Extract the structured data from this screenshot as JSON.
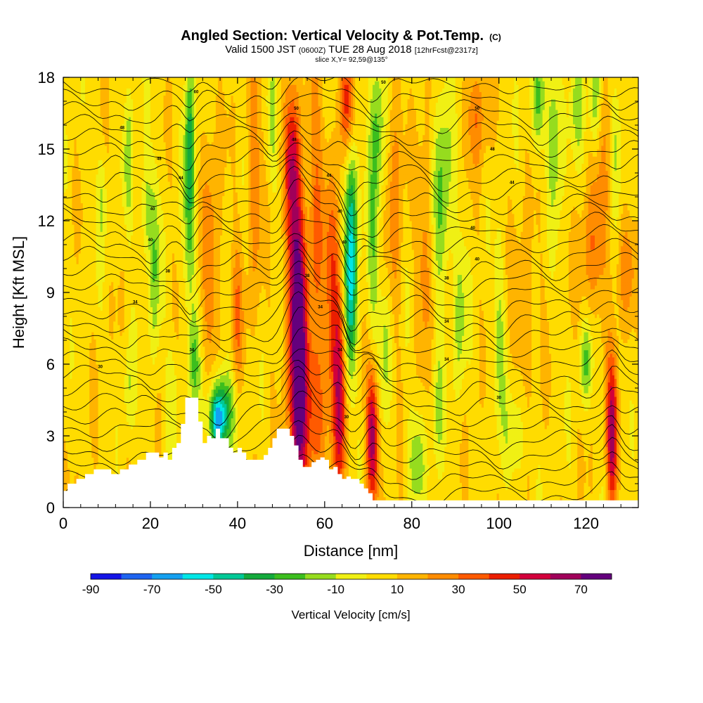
{
  "chart_data": {
    "type": "heatmap",
    "title": "Angled Section: Vertical Velocity & Pot.Temp.",
    "title_suffix": "(C)",
    "subtitle": {
      "valid": "Valid 1500 JST",
      "zulu": "(0600Z)",
      "date": "TUE 28 Aug 2018",
      "fcst": "[12hrFcst@2317z]"
    },
    "slice_label": "slice X,Y= 92,59@135°",
    "xlabel": "Distance [nm]",
    "ylabel": "Height [Kft MSL]",
    "xlim": [
      0,
      132
    ],
    "ylim": [
      0,
      18
    ],
    "x_ticks": [
      0,
      20,
      40,
      60,
      80,
      100,
      120
    ],
    "y_ticks": [
      0,
      3,
      6,
      9,
      12,
      15,
      18
    ],
    "grid": false,
    "colorbar": {
      "label": "Vertical Velocity [cm/s]",
      "bounds": [
        -90,
        -80,
        -70,
        -60,
        -50,
        -40,
        -30,
        -20,
        -10,
        0,
        10,
        20,
        30,
        40,
        50,
        60,
        70,
        80
      ],
      "tick_labels": [
        "-90",
        "-70",
        "-50",
        "-30",
        "-10",
        "10",
        "30",
        "50",
        "70"
      ],
      "colors": [
        "#1414e6",
        "#1e64f0",
        "#14a0f0",
        "#00e6e6",
        "#00c896",
        "#14aa3c",
        "#3cbe1e",
        "#96dc1e",
        "#f0f014",
        "#ffdc00",
        "#ffb400",
        "#ff8c00",
        "#ff5a00",
        "#eb1e00",
        "#d2003c",
        "#a0005a",
        "#64007d"
      ]
    },
    "terrain_profile": {
      "x": [
        0,
        1,
        3,
        5,
        7,
        9,
        11,
        13,
        15,
        17,
        19,
        21,
        22,
        23,
        24,
        25,
        26,
        27,
        28,
        30,
        31,
        32,
        33,
        34,
        35,
        36,
        37,
        38,
        39,
        40,
        41,
        42,
        43,
        44,
        45,
        46,
        47,
        48,
        49,
        50,
        51,
        52,
        53,
        54,
        55,
        56,
        57,
        58,
        59,
        60,
        61,
        62,
        63,
        64,
        65,
        66,
        67,
        68,
        69,
        70,
        71,
        132
      ],
      "height": [
        0.7,
        1.0,
        1.2,
        1.4,
        1.6,
        1.6,
        1.4,
        1.6,
        1.8,
        2.0,
        2.3,
        2.3,
        2.1,
        2.3,
        2.0,
        2.5,
        2.7,
        3.5,
        4.6,
        4.6,
        3.6,
        2.7,
        3.0,
        2.9,
        3.3,
        2.9,
        2.9,
        2.5,
        2.3,
        2.5,
        2.3,
        2.0,
        2.0,
        2.0,
        2.0,
        2.2,
        2.5,
        2.9,
        3.3,
        3.3,
        3.3,
        3.0,
        2.6,
        2.0,
        1.7,
        1.7,
        1.9,
        2.0,
        2.1,
        2.0,
        1.6,
        1.7,
        1.4,
        1.2,
        1.3,
        1.2,
        1.2,
        1.0,
        0.8,
        0.6,
        0.3,
        0.3
      ]
    },
    "velocity_features": [
      {
        "x": 54.0,
        "y": 4.0,
        "sx": 1.3,
        "sy": 3.5,
        "value": 70
      },
      {
        "x": 53.5,
        "y": 9.5,
        "sx": 1.5,
        "sy": 3.2,
        "value": 55
      },
      {
        "x": 52.5,
        "y": 14.5,
        "sx": 1.2,
        "sy": 2.2,
        "value": 40
      },
      {
        "x": 71.0,
        "y": 3.0,
        "sx": 1.0,
        "sy": 2.0,
        "value": 60
      },
      {
        "x": 126.0,
        "y": 3.0,
        "sx": 0.9,
        "sy": 2.2,
        "value": 60
      },
      {
        "x": 63.5,
        "y": 4.5,
        "sx": 1.0,
        "sy": 3.0,
        "value": 45
      },
      {
        "x": 62.0,
        "y": 9.0,
        "sx": 1.3,
        "sy": 3.5,
        "value": 30
      },
      {
        "x": 65.0,
        "y": 17.0,
        "sx": 1.3,
        "sy": 1.5,
        "value": 35
      },
      {
        "x": 58.0,
        "y": 4.0,
        "sx": 2.0,
        "sy": 2.0,
        "value": 30
      },
      {
        "x": 44.0,
        "y": 14.0,
        "sx": 1.2,
        "sy": 4.0,
        "value": 20
      },
      {
        "x": 40.0,
        "y": 8.0,
        "sx": 1.0,
        "sy": 2.5,
        "value": 20
      },
      {
        "x": 34.0,
        "y": 10.0,
        "sx": 1.5,
        "sy": 4.0,
        "value": 20
      },
      {
        "x": 58.0,
        "y": 12.0,
        "sx": 1.5,
        "sy": 4.5,
        "value": 25
      },
      {
        "x": 76.0,
        "y": 13.5,
        "sx": 1.3,
        "sy": 4.0,
        "value": 20
      },
      {
        "x": 83.0,
        "y": 11.0,
        "sx": 1.3,
        "sy": 3.0,
        "value": 20
      },
      {
        "x": 95.0,
        "y": 16.5,
        "sx": 2.0,
        "sy": 1.5,
        "value": 20
      },
      {
        "x": 106.0,
        "y": 8.0,
        "sx": 2.0,
        "sy": 2.5,
        "value": 15
      },
      {
        "x": 121.0,
        "y": 10.5,
        "sx": 2.0,
        "sy": 1.8,
        "value": 20
      },
      {
        "x": 129.0,
        "y": 10.0,
        "sx": 1.5,
        "sy": 1.5,
        "value": 20
      },
      {
        "x": 124.0,
        "y": 14.0,
        "sx": 1.5,
        "sy": 3.5,
        "value": 15
      },
      {
        "x": 66.0,
        "y": 9.0,
        "sx": 1.0,
        "sy": 2.5,
        "value": -55
      },
      {
        "x": 66.0,
        "y": 13.0,
        "sx": 1.0,
        "sy": 2.0,
        "value": -35
      },
      {
        "x": 35.5,
        "y": 3.6,
        "sx": 1.3,
        "sy": 0.9,
        "value": -55
      },
      {
        "x": 36.5,
        "y": 4.2,
        "sx": 2.3,
        "sy": 1.2,
        "value": -35
      },
      {
        "x": 29.0,
        "y": 16.0,
        "sx": 0.8,
        "sy": 2.5,
        "value": -35
      },
      {
        "x": 29.0,
        "y": 11.5,
        "sx": 0.9,
        "sy": 2.5,
        "value": -25
      },
      {
        "x": 30.0,
        "y": 6.0,
        "sx": 0.9,
        "sy": 1.5,
        "value": -25
      },
      {
        "x": 72.0,
        "y": 16.0,
        "sx": 1.3,
        "sy": 2.5,
        "value": -30
      },
      {
        "x": 71.0,
        "y": 10.0,
        "sx": 1.0,
        "sy": 2.5,
        "value": -20
      },
      {
        "x": 74.0,
        "y": 7.0,
        "sx": 1.0,
        "sy": 2.0,
        "value": -20
      },
      {
        "x": 81.0,
        "y": 2.0,
        "sx": 1.5,
        "sy": 1.5,
        "value": -20
      },
      {
        "x": 87.0,
        "y": 13.0,
        "sx": 1.5,
        "sy": 3.0,
        "value": -30
      },
      {
        "x": 91.0,
        "y": 8.0,
        "sx": 1.0,
        "sy": 2.5,
        "value": -20
      },
      {
        "x": 100.0,
        "y": 7.0,
        "sx": 1.0,
        "sy": 2.5,
        "value": -20
      },
      {
        "x": 109.0,
        "y": 17.0,
        "sx": 1.0,
        "sy": 1.5,
        "value": -30
      },
      {
        "x": 113.0,
        "y": 16.0,
        "sx": 1.3,
        "sy": 2.5,
        "value": -25
      },
      {
        "x": 118.0,
        "y": 17.0,
        "sx": 1.0,
        "sy": 1.5,
        "value": -20
      },
      {
        "x": 122.0,
        "y": 17.0,
        "sx": 1.0,
        "sy": 1.5,
        "value": -25
      },
      {
        "x": 127.0,
        "y": 15.5,
        "sx": 1.0,
        "sy": 2.0,
        "value": -20
      },
      {
        "x": 120.0,
        "y": 6.0,
        "sx": 1.0,
        "sy": 1.2,
        "value": -25
      },
      {
        "x": 104.0,
        "y": 3.0,
        "sx": 2.0,
        "sy": 1.5,
        "value": -15
      },
      {
        "x": 21.0,
        "y": 10.0,
        "sx": 0.8,
        "sy": 3.0,
        "value": -25
      },
      {
        "x": 19.0,
        "y": 12.5,
        "sx": 1.0,
        "sy": 1.5,
        "value": -20
      },
      {
        "x": 15.0,
        "y": 14.5,
        "sx": 0.8,
        "sy": 2.0,
        "value": -20
      },
      {
        "x": 9.0,
        "y": 13.0,
        "sx": 0.8,
        "sy": 1.5,
        "value": -15
      },
      {
        "x": 15.0,
        "y": 5.0,
        "sx": 0.8,
        "sy": 1.5,
        "value": -15
      },
      {
        "x": 25.0,
        "y": 5.0,
        "sx": 0.8,
        "sy": 1.5,
        "value": -15
      },
      {
        "x": 86.0,
        "y": 4.0,
        "sx": 1.0,
        "sy": 2.0,
        "value": -15
      },
      {
        "x": 48.0,
        "y": 16.0,
        "sx": 0.8,
        "sy": 2.0,
        "value": -15
      }
    ],
    "contour_labels": [
      {
        "x": 30.5,
        "y": 17.4,
        "text": "60"
      },
      {
        "x": 13.5,
        "y": 15.9,
        "text": "48"
      },
      {
        "x": 53.5,
        "y": 16.7,
        "text": "50"
      },
      {
        "x": 73.5,
        "y": 17.8,
        "text": "50"
      },
      {
        "x": 95.0,
        "y": 16.7,
        "text": "50"
      },
      {
        "x": 22.0,
        "y": 14.6,
        "text": "48"
      },
      {
        "x": 53.0,
        "y": 15.4,
        "text": "48"
      },
      {
        "x": 98.5,
        "y": 15.0,
        "text": "48"
      },
      {
        "x": 27.0,
        "y": 13.8,
        "text": "44"
      },
      {
        "x": 61.0,
        "y": 13.9,
        "text": "44"
      },
      {
        "x": 103.0,
        "y": 13.6,
        "text": "44"
      },
      {
        "x": 20.5,
        "y": 12.5,
        "text": "40"
      },
      {
        "x": 63.5,
        "y": 12.4,
        "text": "40"
      },
      {
        "x": 94.0,
        "y": 11.7,
        "text": "40"
      },
      {
        "x": 20.0,
        "y": 11.2,
        "text": "40"
      },
      {
        "x": 64.5,
        "y": 11.1,
        "text": "40"
      },
      {
        "x": 95.0,
        "y": 10.4,
        "text": "40"
      },
      {
        "x": 24.0,
        "y": 9.9,
        "text": "38"
      },
      {
        "x": 56.0,
        "y": 9.7,
        "text": "38"
      },
      {
        "x": 88.0,
        "y": 9.6,
        "text": "38"
      },
      {
        "x": 16.5,
        "y": 8.6,
        "text": "34"
      },
      {
        "x": 59.0,
        "y": 8.4,
        "text": "34"
      },
      {
        "x": 88.0,
        "y": 7.8,
        "text": "34"
      },
      {
        "x": 29.5,
        "y": 6.6,
        "text": "34"
      },
      {
        "x": 63.5,
        "y": 6.6,
        "text": "34"
      },
      {
        "x": 88.0,
        "y": 6.2,
        "text": "34"
      },
      {
        "x": 8.5,
        "y": 5.9,
        "text": "30"
      },
      {
        "x": 65.0,
        "y": 3.8,
        "text": "30"
      },
      {
        "x": 100.0,
        "y": 4.6,
        "text": "30"
      }
    ]
  }
}
